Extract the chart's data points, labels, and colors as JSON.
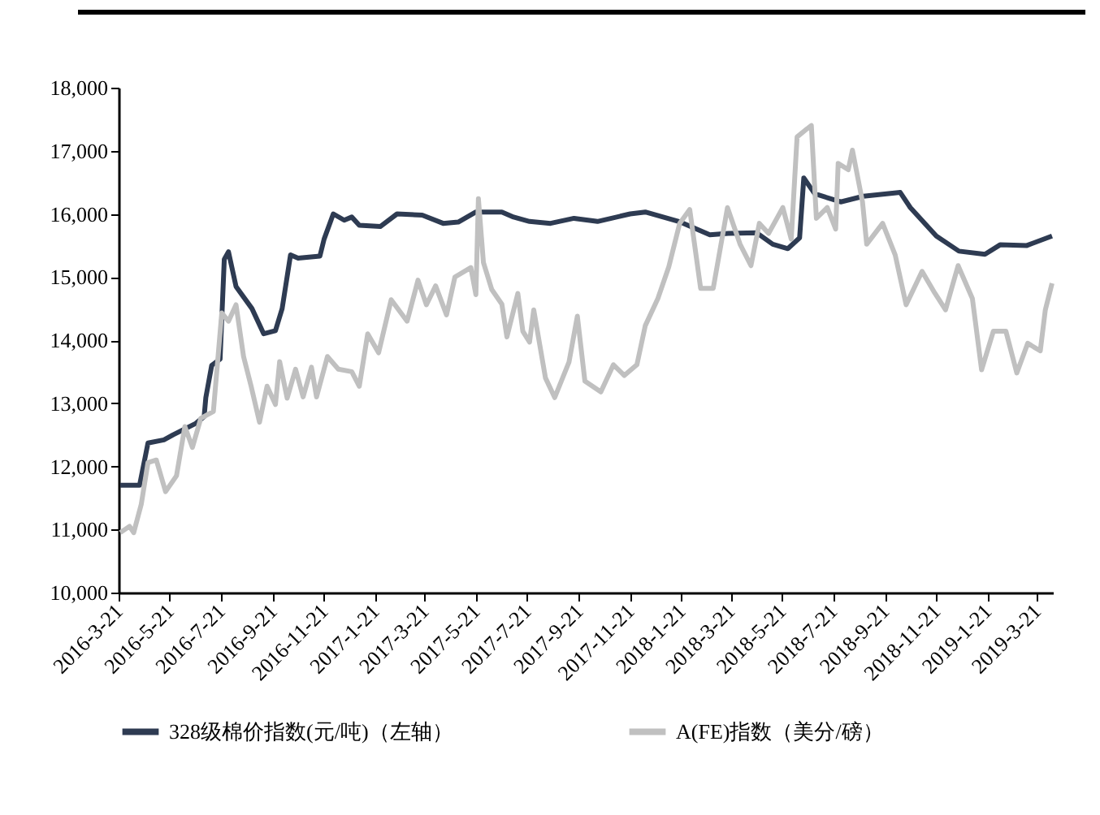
{
  "chart_data": {
    "type": "line",
    "legend": "bottom",
    "grid": false,
    "ylim": [
      10000,
      18000
    ],
    "yticks": [
      {
        "value": 10000,
        "label": "10,000"
      },
      {
        "value": 11000,
        "label": "11,000"
      },
      {
        "value": 12000,
        "label": "12,000"
      },
      {
        "value": 13000,
        "label": "13,000"
      },
      {
        "value": 14000,
        "label": "14,000"
      },
      {
        "value": 15000,
        "label": "15,000"
      },
      {
        "value": 16000,
        "label": "16,000"
      },
      {
        "value": 17000,
        "label": "17,000"
      },
      {
        "value": 18000,
        "label": "18,000"
      }
    ],
    "xlim": [
      "2016-03-21",
      "2019-04-09"
    ],
    "xticks": [
      {
        "value": "2016-03-21",
        "label": "2016-3-21"
      },
      {
        "value": "2016-05-21",
        "label": "2016-5-21"
      },
      {
        "value": "2016-07-21",
        "label": "2016-7-21"
      },
      {
        "value": "2016-09-21",
        "label": "2016-9-21"
      },
      {
        "value": "2016-11-21",
        "label": "2016-11-21"
      },
      {
        "value": "2017-01-21",
        "label": "2017-1-21"
      },
      {
        "value": "2017-03-21",
        "label": "2017-3-21"
      },
      {
        "value": "2017-05-21",
        "label": "2017-5-21"
      },
      {
        "value": "2017-07-21",
        "label": "2017-7-21"
      },
      {
        "value": "2017-09-21",
        "label": "2017-9-21"
      },
      {
        "value": "2017-11-21",
        "label": "2017-11-21"
      },
      {
        "value": "2018-01-21",
        "label": "2018-1-21"
      },
      {
        "value": "2018-03-21",
        "label": "2018-3-21"
      },
      {
        "value": "2018-05-21",
        "label": "2018-5-21"
      },
      {
        "value": "2018-07-21",
        "label": "2018-7-21"
      },
      {
        "value": "2018-09-21",
        "label": "2018-9-21"
      },
      {
        "value": "2018-11-21",
        "label": "2018-11-21"
      },
      {
        "value": "2019-01-21",
        "label": "2019-1-21"
      },
      {
        "value": "2019-03-21",
        "label": "2019-3-21"
      }
    ],
    "series": [
      {
        "name": "328级棉价指数(元/吨)（左轴）",
        "color": "#2e3b52",
        "x": [
          "2016-03-23",
          "2016-04-15",
          "2016-04-25",
          "2016-05-14",
          "2016-05-25",
          "2016-06-21",
          "2016-07-01",
          "2016-07-03",
          "2016-07-10",
          "2016-07-20",
          "2016-07-25",
          "2016-07-30",
          "2016-08-08",
          "2016-08-27",
          "2016-09-10",
          "2016-09-24",
          "2016-10-02",
          "2016-10-12",
          "2016-10-21",
          "2016-11-16",
          "2016-11-21",
          "2016-12-02",
          "2016-12-15",
          "2016-12-24",
          "2017-01-02",
          "2017-01-27",
          "2017-02-16",
          "2017-03-18",
          "2017-04-12",
          "2017-04-30",
          "2017-05-21",
          "2017-06-21",
          "2017-07-05",
          "2017-07-24",
          "2017-08-18",
          "2017-09-15",
          "2017-10-13",
          "2017-11-21",
          "2017-12-09",
          "2018-01-18",
          "2018-02-24",
          "2018-03-18",
          "2018-04-21",
          "2018-05-10",
          "2018-05-28",
          "2018-06-11",
          "2018-06-16",
          "2018-06-29",
          "2018-07-30",
          "2018-08-26",
          "2018-10-09",
          "2018-10-21",
          "2018-11-21",
          "2018-12-18",
          "2019-01-18",
          "2019-02-05",
          "2019-03-09",
          "2019-04-08"
        ],
        "values": [
          11700,
          11700,
          12370,
          12420,
          12500,
          12680,
          12790,
          13090,
          13600,
          13700,
          15280,
          15400,
          14850,
          14500,
          14100,
          14150,
          14500,
          15350,
          15300,
          15330,
          15600,
          16000,
          15900,
          15950,
          15820,
          15800,
          16000,
          15980,
          15850,
          15870,
          16030,
          16030,
          15950,
          15880,
          15850,
          15930,
          15880,
          16000,
          16030,
          15880,
          15670,
          15690,
          15700,
          15520,
          15450,
          15620,
          16570,
          16320,
          16190,
          16280,
          16340,
          16100,
          15650,
          15410,
          15360,
          15510,
          15500,
          15650
        ]
      },
      {
        "name": "A(FE)指数（美分/磅）",
        "color": "#c0c0c0",
        "x": [
          "2016-03-23",
          "2016-04-03",
          "2016-04-08",
          "2016-04-17",
          "2016-04-25",
          "2016-05-05",
          "2016-05-16",
          "2016-05-29",
          "2016-06-08",
          "2016-06-17",
          "2016-06-27",
          "2016-07-12",
          "2016-07-22",
          "2016-07-30",
          "2016-08-08",
          "2016-08-17",
          "2016-08-26",
          "2016-09-05",
          "2016-09-14",
          "2016-09-24",
          "2016-09-29",
          "2016-10-08",
          "2016-10-18",
          "2016-10-27",
          "2016-11-06",
          "2016-11-12",
          "2016-11-25",
          "2016-12-08",
          "2016-12-24",
          "2017-01-02",
          "2017-01-12",
          "2017-01-25",
          "2017-02-09",
          "2017-02-28",
          "2017-03-13",
          "2017-03-23",
          "2017-04-03",
          "2017-04-16",
          "2017-04-26",
          "2017-05-15",
          "2017-05-21",
          "2017-05-24",
          "2017-05-30",
          "2017-06-09",
          "2017-06-21",
          "2017-06-27",
          "2017-07-10",
          "2017-07-16",
          "2017-07-24",
          "2017-07-29",
          "2017-08-12",
          "2017-08-23",
          "2017-09-09",
          "2017-09-19",
          "2017-09-28",
          "2017-10-17",
          "2017-11-01",
          "2017-11-14",
          "2017-11-29",
          "2017-12-09",
          "2017-12-24",
          "2018-01-06",
          "2018-01-19",
          "2018-01-31",
          "2018-02-13",
          "2018-02-28",
          "2018-03-17",
          "2018-04-01",
          "2018-04-14",
          "2018-04-24",
          "2018-05-05",
          "2018-05-22",
          "2018-06-01",
          "2018-06-08",
          "2018-06-20",
          "2018-06-25",
          "2018-07-01",
          "2018-07-14",
          "2018-07-24",
          "2018-07-27",
          "2018-08-08",
          "2018-08-13",
          "2018-08-25",
          "2018-08-30",
          "2018-09-18",
          "2018-10-03",
          "2018-10-16",
          "2018-11-04",
          "2018-11-19",
          "2018-12-02",
          "2018-12-17",
          "2019-01-03",
          "2019-01-14",
          "2019-01-28",
          "2019-02-12",
          "2019-02-25",
          "2019-03-10",
          "2019-03-25",
          "2019-03-31",
          "2019-04-08"
        ],
        "values": [
          10950,
          11050,
          10950,
          11400,
          12060,
          12100,
          11600,
          11850,
          12630,
          12300,
          12760,
          12870,
          14430,
          14300,
          14560,
          13740,
          13270,
          12700,
          13270,
          12980,
          13660,
          13080,
          13540,
          13100,
          13570,
          13100,
          13740,
          13540,
          13500,
          13270,
          14100,
          13800,
          14640,
          14300,
          14950,
          14560,
          14860,
          14400,
          15000,
          15150,
          14720,
          16240,
          15230,
          14800,
          14570,
          14050,
          14740,
          14140,
          13970,
          14480,
          13400,
          13090,
          13650,
          14380,
          13350,
          13180,
          13610,
          13440,
          13610,
          14230,
          14660,
          15160,
          15850,
          16070,
          14820,
          14820,
          16100,
          15520,
          15180,
          15850,
          15690,
          16100,
          15600,
          17220,
          17350,
          17400,
          15930,
          16100,
          15760,
          16800,
          16700,
          17010,
          16190,
          15520,
          15850,
          15350,
          14560,
          15090,
          14750,
          14480,
          15180,
          14660,
          13530,
          14140,
          14140,
          13480,
          13950,
          13830,
          14480,
          14900
        ]
      }
    ]
  }
}
